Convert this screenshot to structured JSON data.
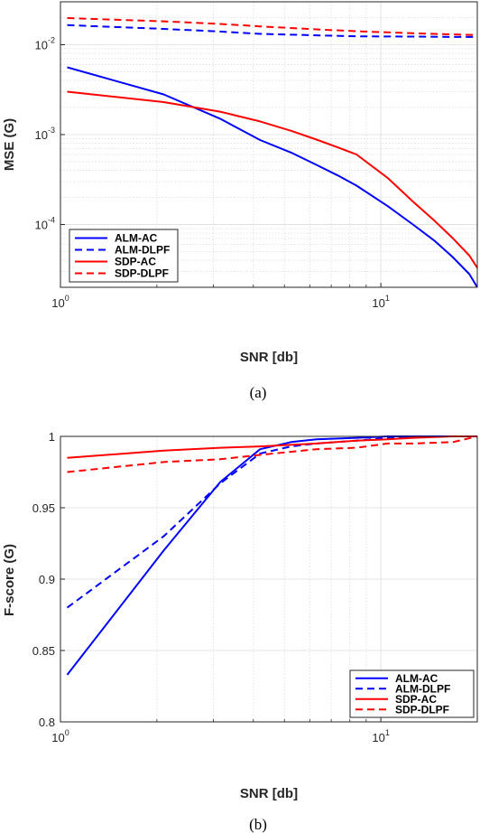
{
  "chart_data": [
    {
      "type": "line",
      "panel_label": "(a)",
      "xlabel": "SNR [db]",
      "ylabel": "MSE (G)",
      "x_scale": "log",
      "y_scale": "log",
      "xlim": [
        1,
        20
      ],
      "ylim": [
        2e-05,
        0.03
      ],
      "x_ticks": [
        {
          "v": 1,
          "m": "10",
          "e": "0"
        },
        {
          "v": 10,
          "m": "10",
          "e": "1"
        }
      ],
      "y_ticks": [
        {
          "v": 0.0001,
          "m": "10",
          "e": "-4"
        },
        {
          "v": 0.001,
          "m": "10",
          "e": "-3"
        },
        {
          "v": 0.01,
          "m": "10",
          "e": "-2"
        }
      ],
      "grid": true,
      "legend_position": "bottom-left",
      "series": [
        {
          "name": "ALM-AC",
          "color": "#0000ff",
          "dash": "solid",
          "x": [
            1.05,
            2.1,
            3.15,
            4.2,
            5.25,
            6.3,
            7.35,
            8.4,
            10.5,
            12.6,
            14.7,
            16.8,
            18.9,
            20
          ],
          "y": [
            0.0056,
            0.0028,
            0.0015,
            0.00087,
            0.00063,
            0.00046,
            0.00035,
            0.00027,
            0.00016,
            0.0001,
            6.6e-05,
            4.3e-05,
            2.8e-05,
            2e-05
          ]
        },
        {
          "name": "ALM-DLPF",
          "color": "#0000ff",
          "dash": "dashed",
          "x": [
            1.05,
            2.1,
            3.15,
            4.2,
            6.3,
            8.4,
            12.6,
            16.8,
            20
          ],
          "y": [
            0.0165,
            0.015,
            0.014,
            0.0132,
            0.0127,
            0.0124,
            0.0123,
            0.0122,
            0.0122
          ]
        },
        {
          "name": "SDP-AC",
          "color": "#ff0000",
          "dash": "solid",
          "x": [
            1.05,
            2.1,
            3.15,
            4.2,
            5.25,
            6.3,
            7.35,
            8.4,
            10.5,
            12.6,
            14.7,
            16.8,
            18.9,
            20
          ],
          "y": [
            0.003,
            0.0023,
            0.0018,
            0.0014,
            0.0011,
            0.00088,
            0.00072,
            0.0006,
            0.00033,
            0.00018,
            0.00011,
            7e-05,
            4.5e-05,
            3.3e-05
          ]
        },
        {
          "name": "SDP-DLPF",
          "color": "#ff0000",
          "dash": "dashed",
          "x": [
            1.05,
            2.1,
            3.15,
            4.2,
            6.3,
            8.4,
            12.6,
            16.8,
            20
          ],
          "y": [
            0.0198,
            0.0182,
            0.017,
            0.016,
            0.0148,
            0.0141,
            0.0134,
            0.013,
            0.0128
          ]
        }
      ]
    },
    {
      "type": "line",
      "panel_label": "(b)",
      "xlabel": "SNR [db]",
      "ylabel": "F-score (G)",
      "x_scale": "log",
      "y_scale": "linear",
      "xlim": [
        1,
        20
      ],
      "ylim": [
        0.8,
        1.0
      ],
      "x_ticks": [
        {
          "v": 1,
          "m": "10",
          "e": "0"
        },
        {
          "v": 10,
          "m": "10",
          "e": "1"
        }
      ],
      "y_ticks": [
        {
          "v": 0.8,
          "t": "0.8"
        },
        {
          "v": 0.85,
          "t": "0.85"
        },
        {
          "v": 0.9,
          "t": "0.9"
        },
        {
          "v": 0.95,
          "t": "0.95"
        },
        {
          "v": 1.0,
          "t": "1"
        }
      ],
      "grid": true,
      "legend_position": "bottom-right",
      "series": [
        {
          "name": "ALM-AC",
          "color": "#0000ff",
          "dash": "solid",
          "x": [
            1.05,
            2.1,
            3.15,
            4.2,
            5.25,
            6.3,
            8.4,
            10.5,
            12.6,
            16.8,
            20
          ],
          "y": [
            0.833,
            0.92,
            0.968,
            0.991,
            0.996,
            0.998,
            0.999,
            1.0,
            1.0,
            1.0,
            1.0
          ]
        },
        {
          "name": "ALM-DLPF",
          "color": "#0000ff",
          "dash": "dashed",
          "x": [
            1.05,
            2.1,
            3.15,
            4.2,
            5.25,
            6.3,
            8.4,
            10.5,
            12.6,
            16.8,
            20
          ],
          "y": [
            0.88,
            0.93,
            0.967,
            0.988,
            0.993,
            0.995,
            0.997,
            0.999,
            1.0,
            1.0,
            1.0
          ]
        },
        {
          "name": "SDP-AC",
          "color": "#ff0000",
          "dash": "solid",
          "x": [
            1.05,
            2.1,
            3.15,
            4.2,
            6.3,
            8.4,
            10.5,
            12.6,
            16.8,
            20
          ],
          "y": [
            0.985,
            0.99,
            0.992,
            0.993,
            0.995,
            0.997,
            0.998,
            0.999,
            1.0,
            1.0
          ]
        },
        {
          "name": "SDP-DLPF",
          "color": "#ff0000",
          "dash": "dashed",
          "x": [
            1.05,
            2.1,
            3.15,
            4.2,
            6.3,
            8.4,
            10.5,
            12.6,
            16.8,
            20
          ],
          "y": [
            0.975,
            0.982,
            0.984,
            0.987,
            0.991,
            0.992,
            0.995,
            0.995,
            0.996,
            1.0
          ]
        }
      ]
    }
  ]
}
